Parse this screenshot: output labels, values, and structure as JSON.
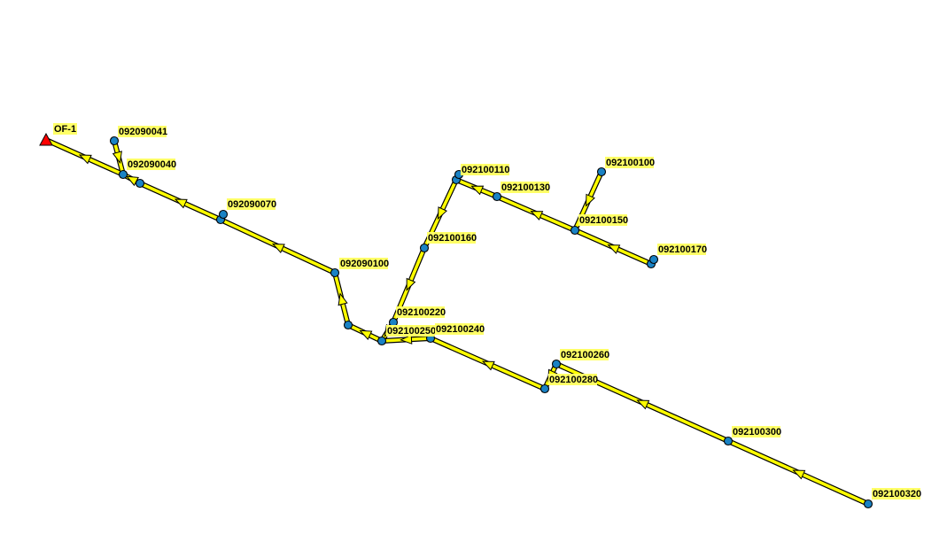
{
  "map": {
    "colors": {
      "conduit": "#ffff00",
      "conduit_outline": "#000000",
      "junction": "#1a82c4",
      "outfall": "#ff0000",
      "label_background": "#ffff66"
    },
    "outfall": {
      "id": "OF-1",
      "shape": "triangle"
    },
    "labels": [
      "OF-1",
      "092090041",
      "092090040",
      "092090070",
      "092090100",
      "092100110",
      "092100130",
      "092100100",
      "092100150",
      "092100170",
      "092100160",
      "092100220",
      "092100250",
      "092100240",
      "092100260",
      "092100280",
      "092100300",
      "092100320"
    ]
  }
}
